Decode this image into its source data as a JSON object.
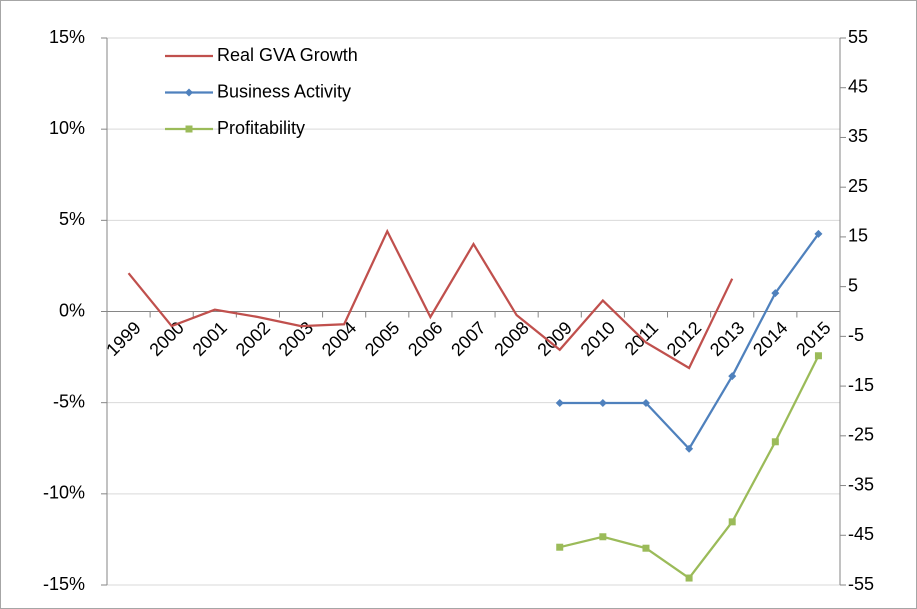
{
  "chart_data": {
    "type": "line",
    "categories": [
      "1999",
      "2000",
      "2001",
      "2002",
      "2003",
      "2004",
      "2005",
      "2006",
      "2007",
      "2008",
      "2009",
      "2010",
      "2011",
      "2012",
      "2013",
      "2014",
      "2015"
    ],
    "series": [
      {
        "name": "Real GVA Growth",
        "color": "#c0504d",
        "marker": "none",
        "axis": "y",
        "values": [
          2.1,
          -0.8,
          0.1,
          -0.3,
          -0.8,
          -0.7,
          4.4,
          -0.3,
          3.7,
          -0.2,
          -2.1,
          0.6,
          -1.7,
          -3.1,
          1.8,
          null,
          null
        ]
      },
      {
        "name": "Business Activity",
        "color": "#4f81bd",
        "marker": "diamond",
        "axis": "y2",
        "values": [
          null,
          null,
          null,
          null,
          null,
          null,
          null,
          null,
          null,
          null,
          -18.4,
          -18.4,
          -18.4,
          -27.6,
          -13,
          3.7,
          15.6
        ]
      },
      {
        "name": "Profitability",
        "color": "#9bbb59",
        "marker": "square",
        "axis": "y2",
        "values": [
          null,
          null,
          null,
          null,
          null,
          null,
          null,
          null,
          null,
          null,
          -47.4,
          -45.3,
          -47.6,
          -53.6,
          -42.3,
          -26.2,
          -8.9
        ]
      }
    ],
    "ylim": [
      -15,
      15
    ],
    "yticks": [
      {
        "value": 15,
        "label": "15%"
      },
      {
        "value": 10,
        "label": "10%"
      },
      {
        "value": 5,
        "label": "5%"
      },
      {
        "value": 0,
        "label": "0%"
      },
      {
        "value": -5,
        "label": "-5%"
      },
      {
        "value": -10,
        "label": "-10%"
      },
      {
        "value": -15,
        "label": "-15%"
      }
    ],
    "y2lim": [
      -55,
      55
    ],
    "y2ticks": [
      55,
      45,
      35,
      25,
      15,
      5,
      -5,
      -15,
      -25,
      -35,
      -45,
      -55
    ],
    "grid": true,
    "legend": "upper-left"
  }
}
